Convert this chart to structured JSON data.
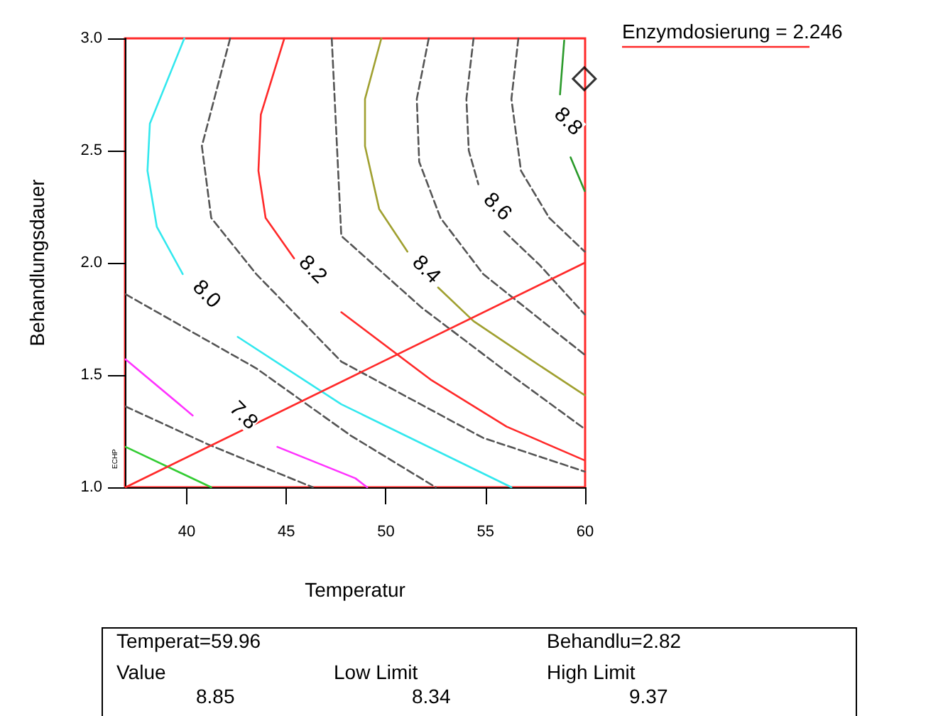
{
  "chart_data": {
    "type": "line",
    "xlabel": "Temperatur",
    "ylabel": "Behandlungsdauer",
    "xlim": [
      36.9,
      60
    ],
    "xticks": [
      40,
      45,
      50,
      55,
      60
    ],
    "ylim": [
      1,
      3
    ],
    "yticks": [
      {
        "value": 1,
        "label": "1.0"
      },
      {
        "value": 1.5,
        "label": "1.5"
      },
      {
        "value": 2,
        "label": "2.0"
      },
      {
        "value": 2.5,
        "label": "2.5"
      },
      {
        "value": 3,
        "label": "3.0"
      }
    ],
    "grid": false,
    "marker": "none",
    "series": [
      {
        "color": "#33e8ee",
        "line_style": "solid",
        "x": [
          39.88,
          38.15,
          38.03,
          38.5,
          39.8,
          41.0,
          42.56,
          47.76,
          56.3
        ],
        "values": [
          3.0,
          2.62,
          2.41,
          2.16,
          1.95,
          null,
          1.67,
          1.37,
          1.0
        ]
      },
      {
        "color": "#ff2a2a",
        "line_style": "solid",
        "x": [
          44.9,
          43.72,
          43.6,
          43.96,
          45.39,
          46.3,
          47.76,
          52.24,
          56.06,
          59.98
        ],
        "values": [
          3.0,
          2.66,
          2.41,
          2.2,
          2.02,
          null,
          1.78,
          1.48,
          1.27,
          1.12
        ]
      },
      {
        "color": "#a0a030",
        "line_style": "solid",
        "x": [
          49.77,
          48.95,
          48.95,
          49.66,
          51.08,
          52.0,
          52.62,
          54.4,
          57.25,
          59.98
        ],
        "values": [
          3.0,
          2.73,
          2.52,
          2.24,
          2.05,
          null,
          1.89,
          1.74,
          1.57,
          1.41
        ]
      },
      {
        "color": "#555555",
        "line_style": "dashed",
        "x": [
          54.4,
          54.04,
          54.16,
          54.64,
          55.5,
          55.94,
          57.72,
          59.98
        ],
        "values": [
          3.0,
          2.73,
          2.5,
          2.35,
          null,
          2.14,
          1.99,
          1.77
        ]
      },
      {
        "color": "#2a9a2a",
        "line_style": "solid",
        "x": [
          58.95,
          58.74,
          59.0,
          59.27,
          59.98
        ],
        "values": [
          2.99,
          2.75,
          null,
          2.47,
          2.32
        ]
      },
      {
        "color": "#ff33ff",
        "line_style": "solid",
        "x": [
          36.93,
          40.3,
          42.8,
          44.55,
          48.47,
          49.06
        ],
        "values": [
          1.57,
          1.32,
          null,
          1.18,
          1.04,
          1.0
        ]
      },
      {
        "color": "#33cc33",
        "line_style": "solid",
        "x": [
          36.93,
          41.23
        ],
        "values": [
          1.18,
          1.0
        ]
      },
      {
        "color": "#555555",
        "line_style": "dashed",
        "x": [
          52.15,
          51.55,
          51.67,
          52.74,
          54.88,
          59.98
        ],
        "values": [
          3.0,
          2.73,
          2.45,
          2.2,
          1.95,
          1.59
        ]
      },
      {
        "color": "#555555",
        "line_style": "dashed",
        "x": [
          56.65,
          56.3,
          56.78,
          58.2,
          59.98
        ],
        "values": [
          3.0,
          2.73,
          2.41,
          2.2,
          2.05
        ]
      },
      {
        "color": "#555555",
        "line_style": "dashed",
        "x": [
          47.28,
          47.76,
          51.8,
          55.82,
          59.98
        ],
        "values": [
          3.0,
          2.12,
          1.8,
          1.53,
          1.26
        ]
      },
      {
        "color": "#555555",
        "line_style": "dashed",
        "x": [
          42.18,
          40.76,
          41.23,
          43.49,
          47.76,
          54.88,
          59.98
        ],
        "values": [
          3.0,
          2.52,
          2.2,
          1.95,
          1.56,
          1.22,
          1.07
        ]
      },
      {
        "color": "#555555",
        "line_style": "dashed",
        "x": [
          36.93,
          43.49,
          48.24,
          52.5
        ],
        "values": [
          1.86,
          1.53,
          1.23,
          1.0
        ]
      },
      {
        "color": "#555555",
        "line_style": "dashed",
        "x": [
          36.93,
          41.1,
          46.33
        ],
        "values": [
          1.36,
          1.19,
          1.0
        ]
      },
      {
        "color": "#ff2a2a",
        "line_style": "solid",
        "x": [
          36.93,
          59.98
        ],
        "values": [
          1.0,
          2.0
        ]
      },
      {
        "type": "scatter",
        "color": "#000000",
        "marker": "diamond",
        "x": [
          59.96
        ],
        "values": [
          2.82
        ]
      }
    ],
    "annotations": [
      {
        "text": "8.0",
        "x": 41.0,
        "y": 1.86
      },
      {
        "text": "8.2",
        "x": 46.33,
        "y": 1.97
      },
      {
        "text": "8.4",
        "x": 52.03,
        "y": 1.97
      },
      {
        "text": "8.6",
        "x": 55.6,
        "y": 2.25
      },
      {
        "text": "8.8",
        "x": 59.15,
        "y": 2.63
      },
      {
        "text": "7.8",
        "x": 42.85,
        "y": 1.32
      },
      "Enzymdosierung = 2.246",
      "ECHP",
      "Temperat=59.96",
      "Behandlu=2.82",
      "Value",
      "Low Limit",
      "High Limit",
      "8.85",
      "8.34",
      "9.37"
    ]
  }
}
